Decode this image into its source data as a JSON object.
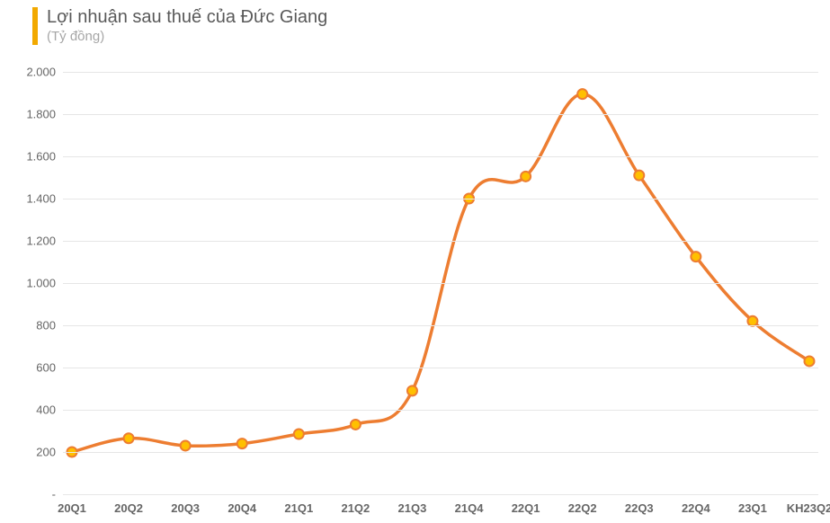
{
  "chart": {
    "type": "line",
    "title": "Lợi nhuận sau thuế của Đức Giang",
    "subtitle": "(Tỷ đồng)",
    "title_color": "#595959",
    "subtitle_color": "#a6a6a6",
    "title_fontsize": 20,
    "subtitle_fontsize": 15,
    "accent_bar_color": "#f2a900",
    "background_color": "#ffffff",
    "grid_color": "#e6e6e6",
    "axis_label_color": "#666666",
    "ylim": [
      0,
      2000
    ],
    "ytick_step": 200,
    "y_tick_format": "thousand_dot_or_dash",
    "categories": [
      "20Q1",
      "20Q2",
      "20Q3",
      "20Q4",
      "21Q1",
      "21Q2",
      "21Q3",
      "21Q4",
      "22Q1",
      "22Q2",
      "22Q3",
      "22Q4",
      "23Q1",
      "KH23Q2"
    ],
    "values": [
      200,
      265,
      230,
      240,
      285,
      330,
      490,
      1400,
      1505,
      1895,
      1510,
      1125,
      820,
      630
    ],
    "line_color": "#ed7d31",
    "line_width": 3.5,
    "marker_fill": "#ffc000",
    "marker_stroke": "#ed7d31",
    "marker_stroke_width": 2,
    "marker_radius": 5.5,
    "x_label_fontsize": 13,
    "x_label_fontweight": 700,
    "y_label_fontsize": 13,
    "smooth": true
  }
}
